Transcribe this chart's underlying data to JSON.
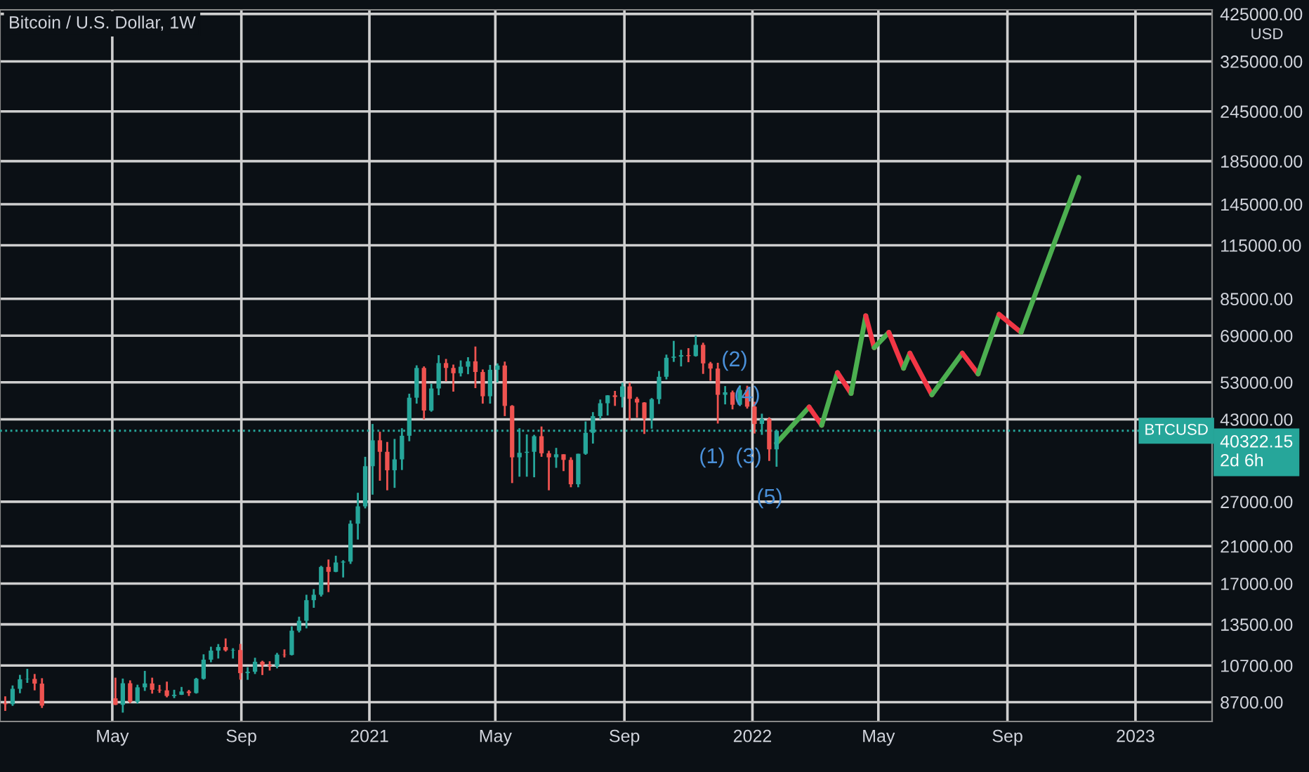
{
  "chart_data": {
    "type": "candlestick",
    "title": "Bitcoin / U.S. Dollar, 1W",
    "log": true,
    "grid": true,
    "xlim": [
      "2020-01-15",
      "2023-03-15"
    ],
    "xticks": [
      {
        "value": "2020-05-01",
        "label": "May"
      },
      {
        "value": "2020-09-01",
        "label": "Sep"
      },
      {
        "value": "2021-01-01",
        "label": "2021"
      },
      {
        "value": "2021-05-01",
        "label": "May"
      },
      {
        "value": "2021-09-01",
        "label": "Sep"
      },
      {
        "value": "2022-01-01",
        "label": "2022"
      },
      {
        "value": "2022-05-01",
        "label": "May"
      },
      {
        "value": "2022-09-01",
        "label": "Sep"
      },
      {
        "value": "2023-01-01",
        "label": "2023"
      }
    ],
    "ylim": [
      7800,
      435000
    ],
    "yticks": [
      {
        "value": 8700,
        "label": "8700.00"
      },
      {
        "value": 10700,
        "label": "10700.00"
      },
      {
        "value": 13500,
        "label": "13500.00"
      },
      {
        "value": 17000,
        "label": "17000.00"
      },
      {
        "value": 21000,
        "label": "21000.00"
      },
      {
        "value": 27000,
        "label": "27000.00"
      },
      {
        "value": 43000,
        "label": "43000.00"
      },
      {
        "value": 53000,
        "label": "53000.00"
      },
      {
        "value": 69000,
        "label": "69000.00"
      },
      {
        "value": 85000,
        "label": "85000.00"
      },
      {
        "value": 115000,
        "label": "115000.00"
      },
      {
        "value": 145000,
        "label": "145000.00"
      },
      {
        "value": 185000,
        "label": "185000.00"
      },
      {
        "value": 245000,
        "label": "245000.00"
      },
      {
        "value": 325000,
        "label": "325000.00"
      },
      {
        "value": 425000,
        "label": "425000.00"
      }
    ],
    "series": [
      {
        "colors": [
          "#ef5350",
          "#26a69a",
          "#26a69a",
          "#26a69a",
          "#ef5350",
          "#ef5350",
          "#ef5350",
          "#26a69a",
          "#ef5350",
          "#26a69a",
          "#26a69a",
          "#ef5350",
          "#ef5350",
          "#ef5350",
          "#26a69a",
          "#26a69a",
          "#ef5350",
          "#26a69a",
          "#26a69a",
          "#26a69a",
          "#26a69a",
          "#ef5350",
          "#26a69a",
          "#ef5350",
          "#26a69a",
          "#26a69a",
          "#ef5350",
          "#ef5350",
          "#26a69a",
          "#ef5350",
          "#26a69a",
          "#26a69a",
          "#26a69a",
          "#26a69a",
          "#26a69a",
          "#ef5350",
          "#26a69a",
          "#26a69a",
          "#26a69a",
          "#26a69a",
          "#26a69a",
          "#26a69a",
          "#ef5350",
          "#ef5350",
          "#26a69a",
          "#26a69a",
          "#26a69a",
          "#26a69a",
          "#ef5350",
          "#26a69a",
          "#26a69a",
          "#ef5350",
          "#ef5350",
          "#26a69a",
          "#26a69a",
          "#ef5350",
          "#ef5350",
          "#26a69a",
          "#26a69a",
          "#ef5350",
          "#ef5350",
          "#26a69a",
          "#26a69a",
          "#26a69a",
          "#ef5350",
          "#ef5350",
          "#26a69a",
          "#ef5350",
          "#ef5350",
          "#26a69a",
          "#26a69a",
          "#26a69a",
          "#26a69a",
          "#26a69a",
          "#ef5350",
          "#26a69a",
          "#ef5350",
          "#ef5350",
          "#ef5350",
          "#26a69a",
          "#26a69a",
          "#26a69a",
          "#26a69a",
          "#26a69a",
          "#ef5350",
          "#26a69a",
          "#ef5350",
          "#ef5350",
          "#ef5350",
          "#26a69a",
          "#ef5350",
          "#26a69a",
          "#ef5350",
          "#ef5350",
          "#26a69a",
          "#ef5350",
          "#26a69a"
        ],
        "x": [
          "2020-01-20",
          "2020-01-27",
          "2020-02-03",
          "2020-02-10",
          "2020-02-17",
          "2020-02-24",
          "2020-05-04",
          "2020-05-11",
          "2020-05-18",
          "2020-05-25",
          "2020-06-01",
          "2020-06-08",
          "2020-06-15",
          "2020-06-22",
          "2020-06-29",
          "2020-07-06",
          "2020-07-13",
          "2020-07-20",
          "2020-07-27",
          "2020-08-03",
          "2020-08-10",
          "2020-08-17",
          "2020-08-24",
          "2020-08-31",
          "2020-09-07",
          "2020-09-14",
          "2020-09-21",
          "2020-09-28",
          "2020-10-05",
          "2020-10-12",
          "2020-10-19",
          "2020-10-26",
          "2020-11-02",
          "2020-11-09",
          "2020-11-16",
          "2020-11-23",
          "2020-11-30",
          "2020-12-07",
          "2020-12-14",
          "2020-12-21",
          "2020-12-28",
          "2021-01-04",
          "2021-01-11",
          "2021-01-18",
          "2021-01-25",
          "2021-02-01",
          "2021-02-08",
          "2021-02-15",
          "2021-02-22",
          "2021-03-01",
          "2021-03-08",
          "2021-03-15",
          "2021-03-22",
          "2021-03-29",
          "2021-04-05",
          "2021-04-12",
          "2021-04-19",
          "2021-04-26",
          "2021-05-03",
          "2021-05-10",
          "2021-05-17",
          "2021-05-24",
          "2021-05-31",
          "2021-06-07",
          "2021-06-14",
          "2021-06-21",
          "2021-06-28",
          "2021-07-05",
          "2021-07-12",
          "2021-07-19",
          "2021-07-26",
          "2021-08-02",
          "2021-08-09",
          "2021-08-16",
          "2021-08-23",
          "2021-08-30",
          "2021-09-06",
          "2021-09-13",
          "2021-09-20",
          "2021-09-27",
          "2021-10-04",
          "2021-10-11",
          "2021-10-18",
          "2021-10-25",
          "2021-11-01",
          "2021-11-08",
          "2021-11-15",
          "2021-11-22",
          "2021-11-29",
          "2021-12-06",
          "2021-12-13",
          "2021-12-20",
          "2021-12-27",
          "2022-01-03",
          "2022-01-10",
          "2022-01-17",
          "2022-01-24"
        ],
        "ohlc": [
          [
            8640,
            8990,
            8280,
            8600
          ],
          [
            8600,
            9560,
            8520,
            9380
          ],
          [
            9380,
            10150,
            9150,
            9900
          ],
          [
            9900,
            10500,
            9700,
            9920
          ],
          [
            9920,
            10200,
            9300,
            9660
          ],
          [
            9660,
            9960,
            8420,
            8530
          ],
          [
            8890,
            9990,
            8560,
            8570
          ],
          [
            8570,
            9940,
            8200,
            9680
          ],
          [
            9680,
            9840,
            8650,
            8720
          ],
          [
            8720,
            9600,
            8630,
            9460
          ],
          [
            9460,
            10380,
            9270,
            9670
          ],
          [
            9670,
            9990,
            9130,
            9330
          ],
          [
            9330,
            9590,
            9170,
            9300
          ],
          [
            9300,
            9770,
            8940,
            9010
          ],
          [
            9010,
            9330,
            8900,
            9070
          ],
          [
            9070,
            9480,
            9060,
            9240
          ],
          [
            9240,
            9320,
            9010,
            9160
          ],
          [
            9160,
            9980,
            9130,
            9930
          ],
          [
            9930,
            11400,
            9880,
            11060
          ],
          [
            11060,
            11900,
            10900,
            11640
          ],
          [
            11640,
            12080,
            11130,
            11880
          ],
          [
            11880,
            12470,
            11580,
            11660
          ],
          [
            11650,
            11800,
            11130,
            11680
          ],
          [
            11680,
            12090,
            9880,
            10250
          ],
          [
            10250,
            10600,
            9870,
            10330
          ],
          [
            10330,
            11180,
            10200,
            10930
          ],
          [
            10930,
            10990,
            10140,
            10730
          ],
          [
            10730,
            10960,
            10400,
            10670
          ],
          [
            10670,
            11490,
            10530,
            11380
          ],
          [
            11380,
            11720,
            11200,
            11360
          ],
          [
            11360,
            13350,
            11330,
            13030
          ],
          [
            13030,
            14100,
            12900,
            13780
          ],
          [
            13780,
            15960,
            13200,
            15480
          ],
          [
            15480,
            16480,
            14830,
            15960
          ],
          [
            15960,
            18800,
            15800,
            18680
          ],
          [
            18680,
            19480,
            16200,
            18170
          ],
          [
            18170,
            19900,
            18130,
            19150
          ],
          [
            19150,
            19400,
            17600,
            19250
          ],
          [
            19250,
            24300,
            19000,
            23850
          ],
          [
            23850,
            28400,
            21800,
            26300
          ],
          [
            26300,
            34800,
            26000,
            33000
          ],
          [
            33000,
            41900,
            28100,
            38200
          ],
          [
            38200,
            40100,
            30400,
            35800
          ],
          [
            35800,
            37850,
            28800,
            32250
          ],
          [
            32250,
            38500,
            29200,
            34300
          ],
          [
            34300,
            40900,
            32300,
            39200
          ],
          [
            39200,
            49700,
            38000,
            48600
          ],
          [
            48600,
            58350,
            47000,
            57500
          ],
          [
            57500,
            58000,
            43000,
            45200
          ],
          [
            45200,
            52600,
            44900,
            51200
          ],
          [
            51200,
            61800,
            49300,
            59100
          ],
          [
            59100,
            60500,
            53300,
            57500
          ],
          [
            57500,
            58600,
            50300,
            55800
          ],
          [
            55800,
            60000,
            54800,
            57900
          ],
          [
            57900,
            61100,
            55500,
            59700
          ],
          [
            59700,
            64900,
            51300,
            56200
          ],
          [
            56200,
            57000,
            47000,
            49000
          ],
          [
            49000,
            58500,
            47000,
            56900
          ],
          [
            56900,
            59000,
            53000,
            58300
          ],
          [
            58300,
            59600,
            43800,
            46400
          ],
          [
            46400,
            46600,
            30000,
            34700
          ],
          [
            34700,
            40900,
            31100,
            35600
          ],
          [
            35600,
            39500,
            31100,
            35800
          ],
          [
            35800,
            39400,
            31000,
            39100
          ],
          [
            39100,
            41300,
            34800,
            35500
          ],
          [
            35500,
            36000,
            28800,
            34700
          ],
          [
            34700,
            36600,
            32700,
            35300
          ],
          [
            35300,
            35300,
            32100,
            34200
          ],
          [
            34200,
            34700,
            29300,
            29800
          ],
          [
            29800,
            35400,
            29300,
            35400
          ],
          [
            35400,
            42500,
            35200,
            39850
          ],
          [
            39850,
            44800,
            37500,
            43800
          ],
          [
            43800,
            48100,
            43000,
            47100
          ],
          [
            47100,
            49300,
            43950,
            49250
          ],
          [
            49250,
            50500,
            46400,
            48800
          ],
          [
            48800,
            52900,
            46000,
            51800
          ],
          [
            51800,
            52900,
            42800,
            48300
          ],
          [
            48300,
            48800,
            43400,
            47300
          ],
          [
            47300,
            47400,
            39600,
            43200
          ],
          [
            43200,
            48500,
            40800,
            48200
          ],
          [
            48200,
            56500,
            46900,
            54700
          ],
          [
            54700,
            62000,
            53900,
            60900
          ],
          [
            60900,
            67000,
            59500,
            61300
          ],
          [
            61300,
            63700,
            58000,
            61800
          ],
          [
            61800,
            64300,
            59400,
            61500
          ],
          [
            61500,
            69000,
            61300,
            65500
          ],
          [
            65500,
            66300,
            55600,
            59000
          ],
          [
            59000,
            59500,
            53500,
            57300
          ],
          [
            57300,
            59200,
            42000,
            49400
          ],
          [
            49400,
            51900,
            46800,
            50100
          ],
          [
            50100,
            50600,
            45500,
            46700
          ],
          [
            46700,
            52100,
            46400,
            50800
          ],
          [
            50800,
            52000,
            45700,
            46200
          ],
          [
            46200,
            47500,
            39700,
            41900
          ],
          [
            41900,
            44400,
            39400,
            43100
          ],
          [
            43100,
            43500,
            34000,
            36300
          ],
          [
            36300,
            40500,
            32900,
            40322.15
          ]
        ]
      },
      {
        "type": "line",
        "color": "#4caf50",
        "x": [
          "2022-01-24",
          "2022-02-24"
        ],
        "values": [
          37600,
          46100
        ]
      },
      {
        "type": "line",
        "color": "#f23645",
        "x": [
          "2022-02-24",
          "2022-03-08"
        ],
        "values": [
          46100,
          41600
        ]
      },
      {
        "type": "line",
        "color": "#4caf50",
        "x": [
          "2022-03-08",
          "2022-03-23"
        ],
        "values": [
          41600,
          56000
        ]
      },
      {
        "type": "line",
        "color": "#f23645",
        "x": [
          "2022-03-23",
          "2022-04-05"
        ],
        "values": [
          56000,
          49800
        ]
      },
      {
        "type": "line",
        "color": "#4caf50",
        "x": [
          "2022-04-05",
          "2022-04-19"
        ],
        "values": [
          49800,
          77200
        ]
      },
      {
        "type": "line",
        "color": "#f23645",
        "x": [
          "2022-04-19",
          "2022-04-27"
        ],
        "values": [
          77200,
          64500
        ]
      },
      {
        "type": "line",
        "color": "#4caf50",
        "x": [
          "2022-04-27",
          "2022-05-11"
        ],
        "values": [
          64500,
          70300
        ]
      },
      {
        "type": "line",
        "color": "#f23645",
        "x": [
          "2022-05-11",
          "2022-05-25"
        ],
        "values": [
          70300,
          57400
        ]
      },
      {
        "type": "line",
        "color": "#4caf50",
        "x": [
          "2022-05-25",
          "2022-05-31"
        ],
        "values": [
          57400,
          62500
        ]
      },
      {
        "type": "line",
        "color": "#f23645",
        "x": [
          "2022-05-31",
          "2022-06-21"
        ],
        "values": [
          62500,
          49400
        ]
      },
      {
        "type": "line",
        "color": "#4caf50",
        "x": [
          "2022-06-21",
          "2022-07-20"
        ],
        "values": [
          49400,
          62500
        ]
      },
      {
        "type": "line",
        "color": "#f23645",
        "x": [
          "2022-07-20",
          "2022-08-04"
        ],
        "values": [
          62500,
          55600
        ]
      },
      {
        "type": "line",
        "color": "#4caf50",
        "x": [
          "2022-08-04",
          "2022-08-24"
        ],
        "values": [
          55600,
          77800
        ]
      },
      {
        "type": "line",
        "color": "#f23645",
        "x": [
          "2022-08-24",
          "2022-09-14"
        ],
        "values": [
          77800,
          70300
        ]
      },
      {
        "type": "line",
        "color": "#4caf50",
        "x": [
          "2022-09-14",
          "2022-11-08"
        ],
        "values": [
          70300,
          168800
        ]
      }
    ],
    "ref_lines": [
      {
        "axis": "y",
        "value": 40322.15,
        "label": "BTCUSD",
        "color": "#26a69a",
        "line_style": "dotted"
      }
    ],
    "annotations": [
      "USD",
      "40322.15",
      "2d 6h",
      "(2)",
      "(4)",
      "(1)",
      "(3)",
      "(5)"
    ]
  }
}
